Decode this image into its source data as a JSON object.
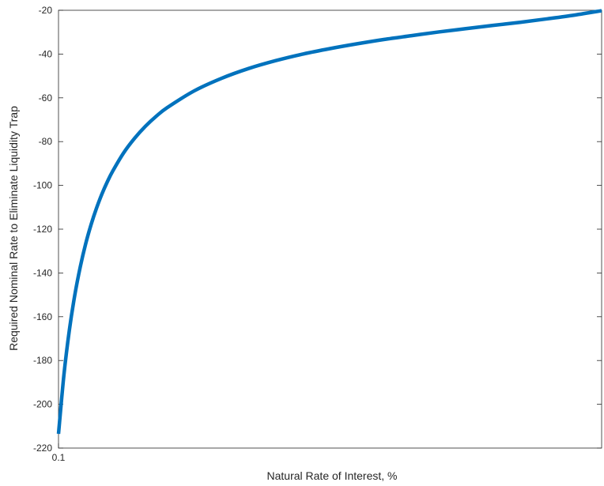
{
  "chart_data": {
    "type": "line",
    "title": "",
    "xlabel": "Natural Rate of Interest, %",
    "ylabel": "Required Nominal Rate to Eliminate Liquidity Trap",
    "x_tick_labels": [
      "0.1"
    ],
    "y_ticks": [
      -220,
      -200,
      -180,
      -160,
      -140,
      -120,
      -100,
      -80,
      -60,
      -40,
      -20
    ],
    "ylim": [
      -220,
      -20
    ],
    "grid": false,
    "legend": "none",
    "series": [
      {
        "color": "#0072BD",
        "x_relative": [
          0.0,
          0.01,
          0.02,
          0.03,
          0.04,
          0.05,
          0.06,
          0.07,
          0.08,
          0.09,
          0.1,
          0.12,
          0.14,
          0.16,
          0.18,
          0.2,
          0.25,
          0.3,
          0.35,
          0.4,
          0.45,
          0.5,
          0.55,
          0.6,
          0.65,
          0.7,
          0.75,
          0.8,
          0.85,
          0.9,
          0.95,
          1.0
        ],
        "y": [
          -213.5,
          -186.5,
          -166.1,
          -150.1,
          -137.3,
          -126.7,
          -117.9,
          -110.4,
          -103.9,
          -98.3,
          -93.4,
          -85.1,
          -78.5,
          -73.0,
          -68.4,
          -64.5,
          -56.8,
          -51.1,
          -46.6,
          -43.0,
          -40.0,
          -37.5,
          -35.3,
          -33.3,
          -31.6,
          -29.9,
          -28.4,
          -26.9,
          -25.5,
          -23.9,
          -22.2,
          -20.2
        ]
      }
    ]
  }
}
